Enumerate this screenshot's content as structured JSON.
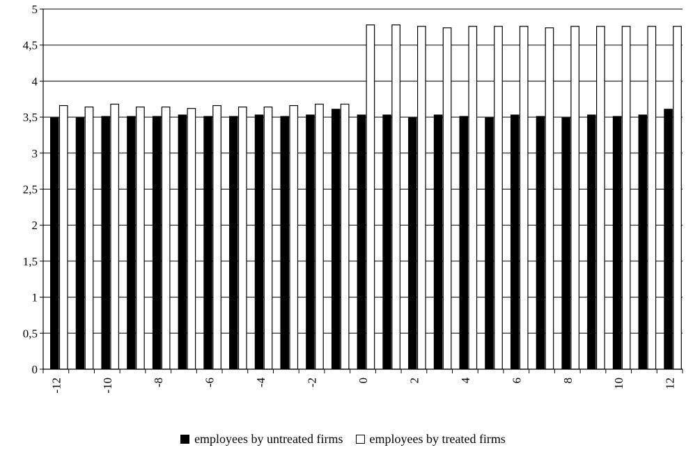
{
  "chart_data": {
    "type": "bar",
    "categories": [
      "-12",
      "-11",
      "-10",
      "-9",
      "-8",
      "-7",
      "-6",
      "-5",
      "-4",
      "-3",
      "-2",
      "-1",
      "0",
      "1",
      "2",
      "3",
      "4",
      "5",
      "6",
      "7",
      "8",
      "9",
      "10",
      "11",
      "12"
    ],
    "x_tick_labels": [
      "-12",
      "-10",
      "-8",
      "-6",
      "-4",
      "-2",
      "0",
      "2",
      "4",
      "6",
      "8",
      "10",
      "12"
    ],
    "y_tick_labels": [
      "0",
      "0,5",
      "1",
      "1,5",
      "2",
      "2,5",
      "3",
      "3,5",
      "4",
      "4,5",
      "5"
    ],
    "ylim": [
      0,
      5
    ],
    "grid": "horizontal",
    "legend_position": "bottom",
    "colors": {
      "untreated": "#000000",
      "treated": "#ffffff",
      "outline": "#000000"
    },
    "series": [
      {
        "name": "employees by untreated firms",
        "values": [
          3.49,
          3.49,
          3.51,
          3.51,
          3.51,
          3.53,
          3.51,
          3.51,
          3.53,
          3.51,
          3.53,
          3.61,
          3.53,
          3.53,
          3.49,
          3.53,
          3.51,
          3.49,
          3.53,
          3.51,
          3.49,
          3.53,
          3.51,
          3.53,
          3.61
        ]
      },
      {
        "name": "employees by treated firms",
        "values": [
          3.66,
          3.64,
          3.68,
          3.64,
          3.64,
          3.62,
          3.66,
          3.64,
          3.64,
          3.66,
          3.68,
          3.68,
          4.78,
          4.78,
          4.76,
          4.74,
          4.76,
          4.76,
          4.76,
          4.74,
          4.76,
          4.76,
          4.76,
          4.76,
          4.76
        ]
      }
    ]
  }
}
